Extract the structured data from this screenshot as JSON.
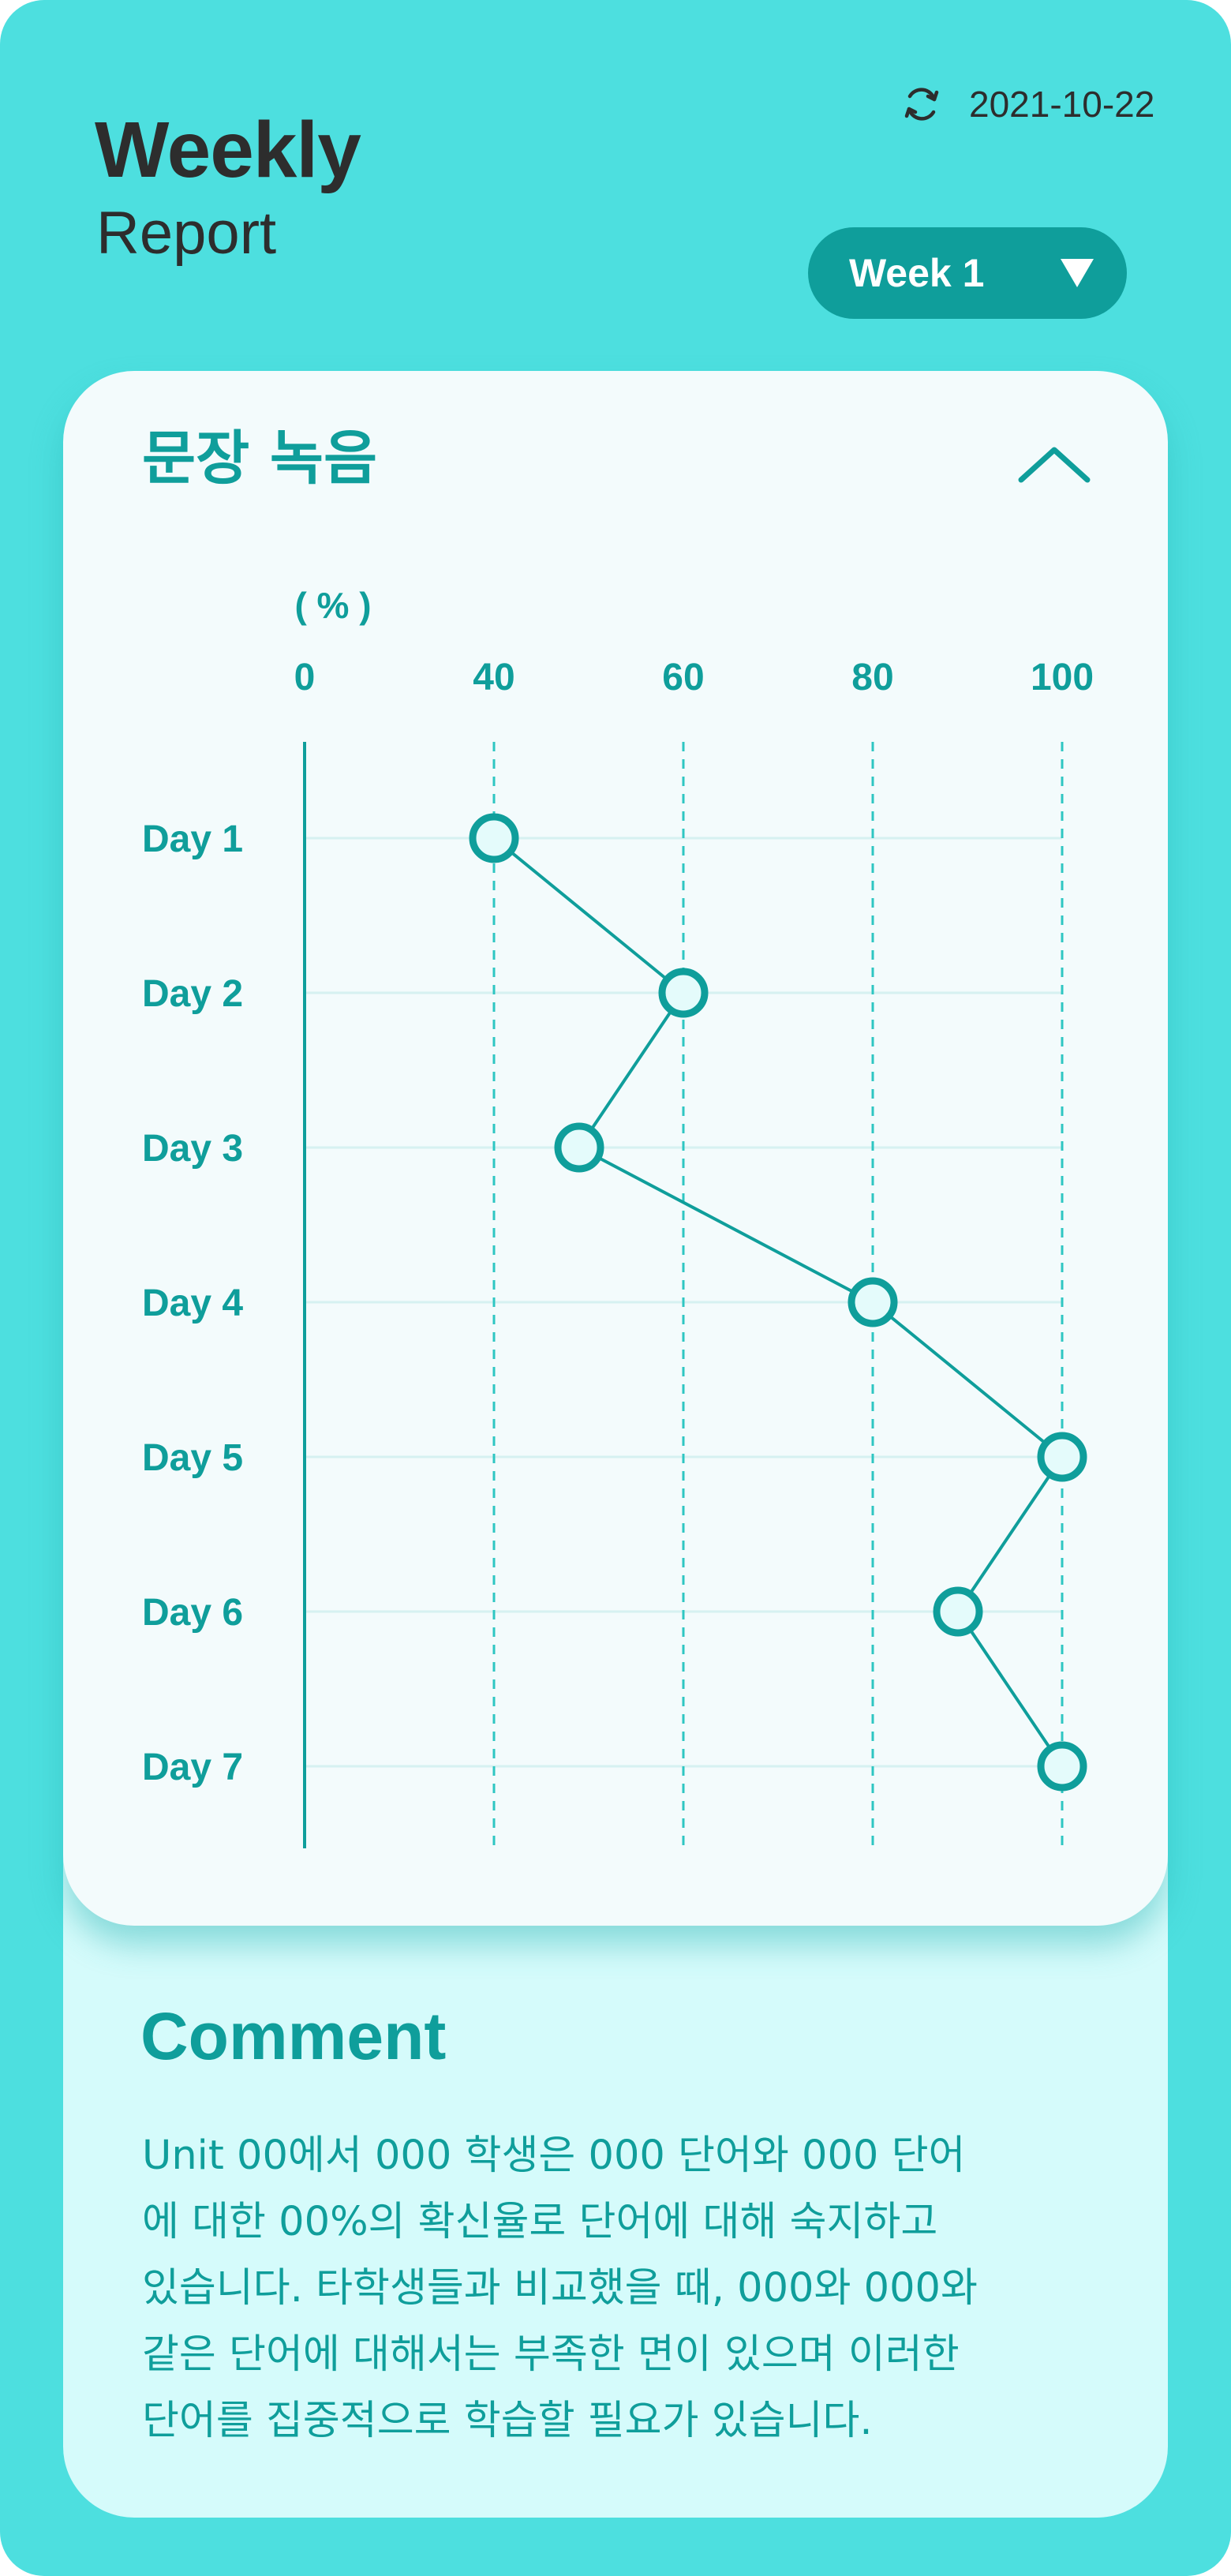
{
  "header": {
    "title": "Weekly",
    "subtitle": "Report",
    "date": "2021-10-22",
    "sync_icon": "refresh-icon"
  },
  "week_selector": {
    "label": "Week 1",
    "caret_icon": "triangle-down-icon"
  },
  "chart_card": {
    "title": "문장 녹음",
    "collapse_icon": "chevron-up-icon"
  },
  "colors": {
    "background": "#4ddfdf",
    "accent": "#0f9e9b",
    "card": "#f3fbfc",
    "comment_card": "#d5fbfb",
    "text_dark": "#2d2d2d"
  },
  "chart_data": {
    "type": "line",
    "orientation": "horizontal",
    "unit_label": "( % )",
    "categories": [
      "Day 1",
      "Day 2",
      "Day 3",
      "Day 4",
      "Day 5",
      "Day 6",
      "Day 7"
    ],
    "values": [
      40,
      60,
      49,
      80,
      100,
      89,
      100
    ],
    "xticks": [
      0,
      40,
      60,
      80,
      100
    ],
    "xlim": [
      0,
      100
    ],
    "grid": true
  },
  "comment": {
    "title": "Comment",
    "text": "Unit 00에서 000 학생은 000 단어와 000 단어\n에 대한 00%의 확신율로 단어에 대해 숙지하고\n있습니다. 타학생들과 비교했을 때, 000와 000와\n같은 단어에 대해서는 부족한 면이 있으며 이러한\n단어를 집중적으로 학습할 필요가 있습니다."
  }
}
